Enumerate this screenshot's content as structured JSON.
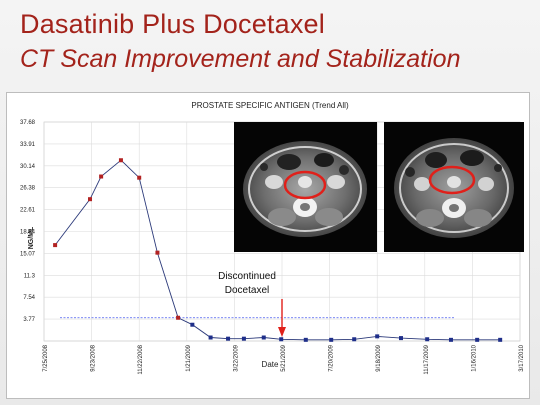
{
  "slide": {
    "title": "Dasatinib Plus Docetaxel",
    "subtitle": "CT Scan Improvement and Stabilization"
  },
  "annotation": {
    "line1": "Discontinued",
    "line2": "Docetaxel",
    "arrow_color": "#e0201a"
  },
  "images": [
    {
      "name": "ct-scan-before"
    },
    {
      "name": "ct-scan-after"
    }
  ],
  "chart_data": {
    "type": "line",
    "title": "PROSTATE SPECIFIC ANTIGEN (Trend All)",
    "xlabel": "Date",
    "ylabel": "NG/ML",
    "yticks": [
      "37.68",
      "33.91",
      "30.14",
      "26.38",
      "22.61",
      "18.84",
      "15.07",
      "11.3",
      "7.54",
      "3.77"
    ],
    "yrange": [
      0,
      37.68
    ],
    "xticks": [
      "7/25/2008",
      "9/23/2008",
      "11/22/2008",
      "1/21/2009",
      "3/22/2009",
      "5/21/2009",
      "7/20/2009",
      "9/18/2009",
      "11/17/2009",
      "1/16/2010",
      "3/17/2010"
    ],
    "xrange": [
      "2008-07-25",
      "2010-03-17"
    ],
    "grid": true,
    "series": [
      {
        "color": "#2c3a7a",
        "points": [
          {
            "date": "2008-08-08",
            "value": 16.5,
            "color": "#b22222"
          },
          {
            "date": "2008-09-21",
            "value": 24.4,
            "color": "#b22222"
          },
          {
            "date": "2008-10-05",
            "value": 28.3,
            "color": "#b22222"
          },
          {
            "date": "2008-10-30",
            "value": 31.1,
            "color": "#b22222"
          },
          {
            "date": "2008-11-22",
            "value": 28.1,
            "color": "#b22222"
          },
          {
            "date": "2008-12-15",
            "value": 15.2,
            "color": "#b22222"
          },
          {
            "date": "2009-01-10",
            "value": 4.0,
            "color": "#b22222"
          },
          {
            "date": "2009-01-28",
            "value": 2.8,
            "color": "#1f2f8a"
          },
          {
            "date": "2009-02-20",
            "value": 0.6,
            "color": "#1f2f8a"
          },
          {
            "date": "2009-03-14",
            "value": 0.4,
            "color": "#1f2f8a"
          },
          {
            "date": "2009-04-03",
            "value": 0.4,
            "color": "#1f2f8a"
          },
          {
            "date": "2009-04-28",
            "value": 0.6,
            "color": "#1f2f8a"
          },
          {
            "date": "2009-05-20",
            "value": 0.3,
            "color": "#1f2f8a"
          },
          {
            "date": "2009-06-20",
            "value": 0.2,
            "color": "#1f2f8a"
          },
          {
            "date": "2009-07-22",
            "value": 0.2,
            "color": "#1f2f8a"
          },
          {
            "date": "2009-08-20",
            "value": 0.3,
            "color": "#1f2f8a"
          },
          {
            "date": "2009-09-18",
            "value": 0.8,
            "color": "#1f2f8a"
          },
          {
            "date": "2009-10-18",
            "value": 0.5,
            "color": "#1f2f8a"
          },
          {
            "date": "2009-11-20",
            "value": 0.3,
            "color": "#1f2f8a"
          },
          {
            "date": "2009-12-20",
            "value": 0.2,
            "color": "#1f2f8a"
          },
          {
            "date": "2010-01-22",
            "value": 0.2,
            "color": "#1f2f8a"
          },
          {
            "date": "2010-02-20",
            "value": 0.2,
            "color": "#1f2f8a"
          }
        ]
      }
    ],
    "reference_line": {
      "value": 4.0,
      "color": "#4a5cf0",
      "style": "dashed"
    },
    "annotation_date": "2009-05-21"
  }
}
